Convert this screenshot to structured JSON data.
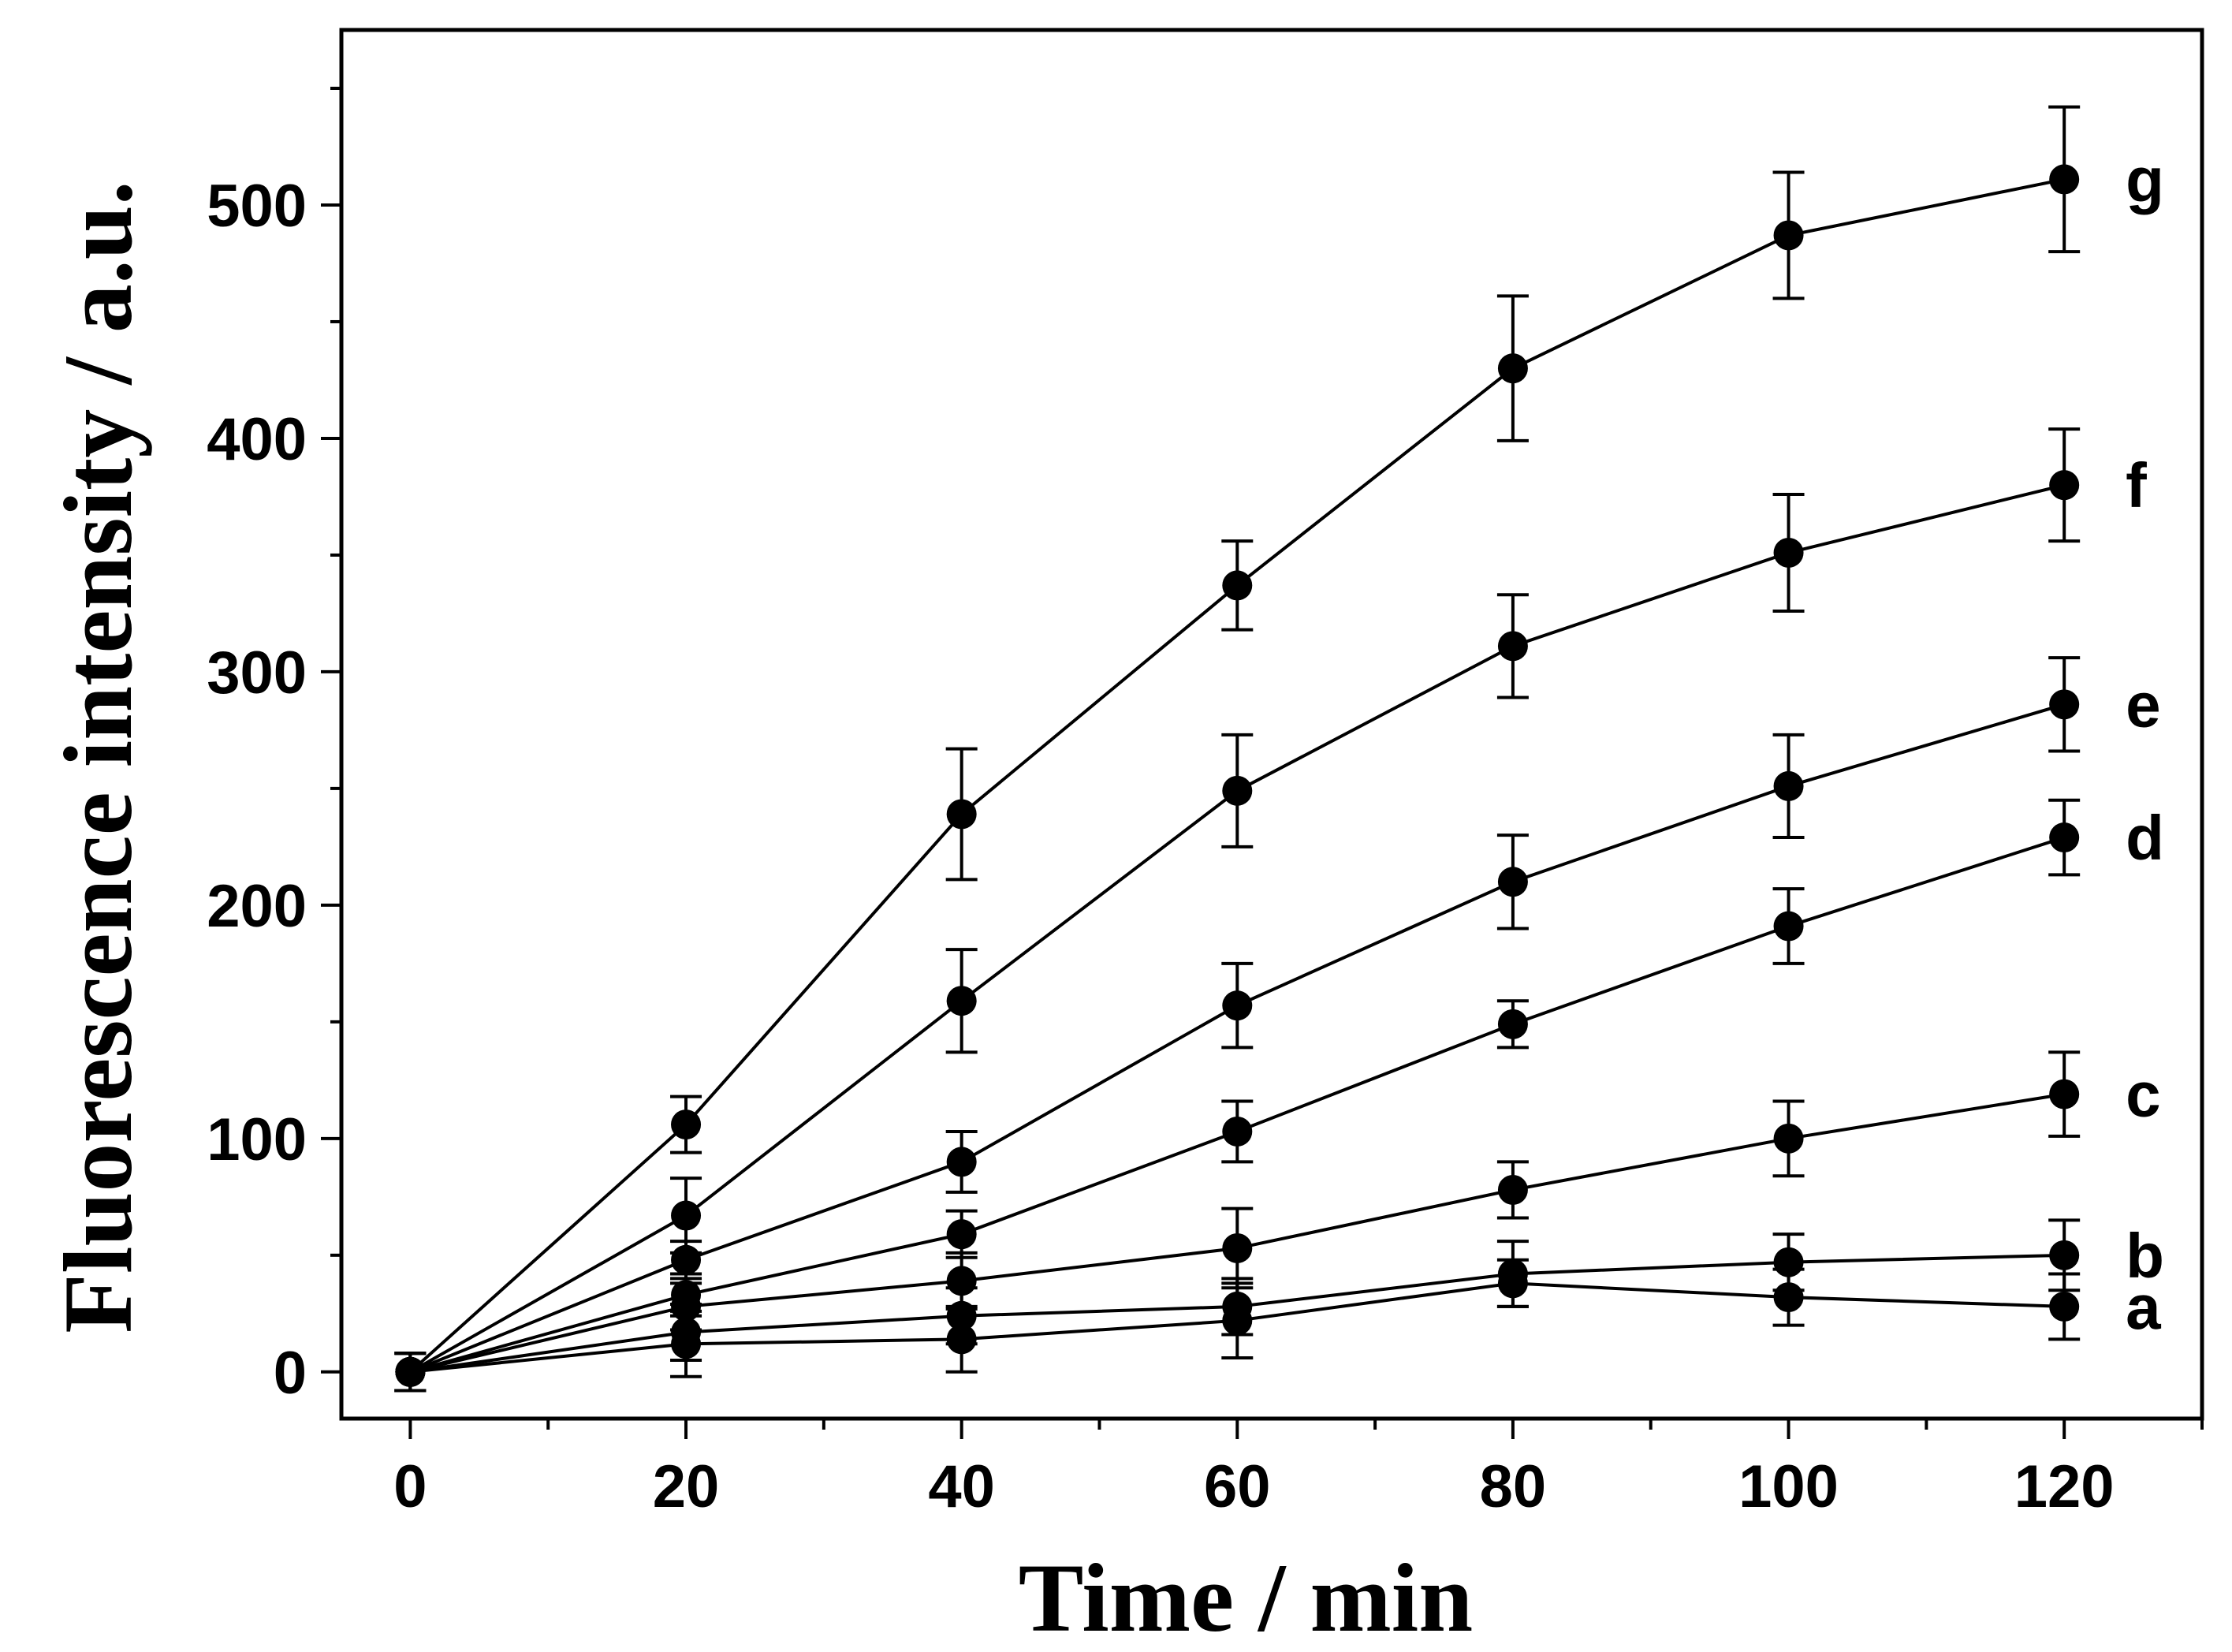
{
  "chart_data": {
    "type": "line",
    "title": "",
    "xlabel": "Time / min",
    "ylabel": "Fluorescence intensity / a.u.",
    "xlim": [
      -5,
      130
    ],
    "ylim": [
      -20,
      575
    ],
    "x": [
      0,
      20,
      40,
      60,
      80,
      100,
      120
    ],
    "x_ticks": [
      "0",
      "20",
      "40",
      "60",
      "80",
      "100",
      "120"
    ],
    "y_ticks": [
      "0",
      "100",
      "200",
      "300",
      "400",
      "500"
    ],
    "grid": false,
    "series": [
      {
        "name": "a",
        "values": [
          0,
          12,
          14,
          22,
          38,
          32,
          28
        ],
        "errors": [
          8,
          14,
          14,
          16,
          10,
          12,
          14
        ]
      },
      {
        "name": "b",
        "values": [
          0,
          17,
          24,
          28,
          42,
          47,
          50
        ],
        "errors": [
          8,
          12,
          12,
          12,
          14,
          12,
          15
        ]
      },
      {
        "name": "c",
        "values": [
          0,
          28,
          39,
          53,
          78,
          100,
          119
        ],
        "errors": [
          8,
          10,
          12,
          17,
          12,
          16,
          18
        ]
      },
      {
        "name": "d",
        "values": [
          0,
          33,
          59,
          103,
          149,
          191,
          229
        ],
        "errors": [
          8,
          9,
          10,
          13,
          10,
          16,
          16
        ]
      },
      {
        "name": "e",
        "values": [
          0,
          48,
          90,
          157,
          210,
          251,
          286
        ],
        "errors": [
          8,
          8,
          13,
          18,
          20,
          22,
          20
        ]
      },
      {
        "name": "f",
        "values": [
          0,
          67,
          159,
          249,
          311,
          351,
          380
        ],
        "errors": [
          8,
          16,
          22,
          24,
          22,
          25,
          24
        ]
      },
      {
        "name": "g",
        "values": [
          0,
          106,
          239,
          337,
          430,
          487,
          511
        ],
        "errors": [
          8,
          12,
          28,
          19,
          31,
          27,
          31
        ]
      }
    ]
  }
}
